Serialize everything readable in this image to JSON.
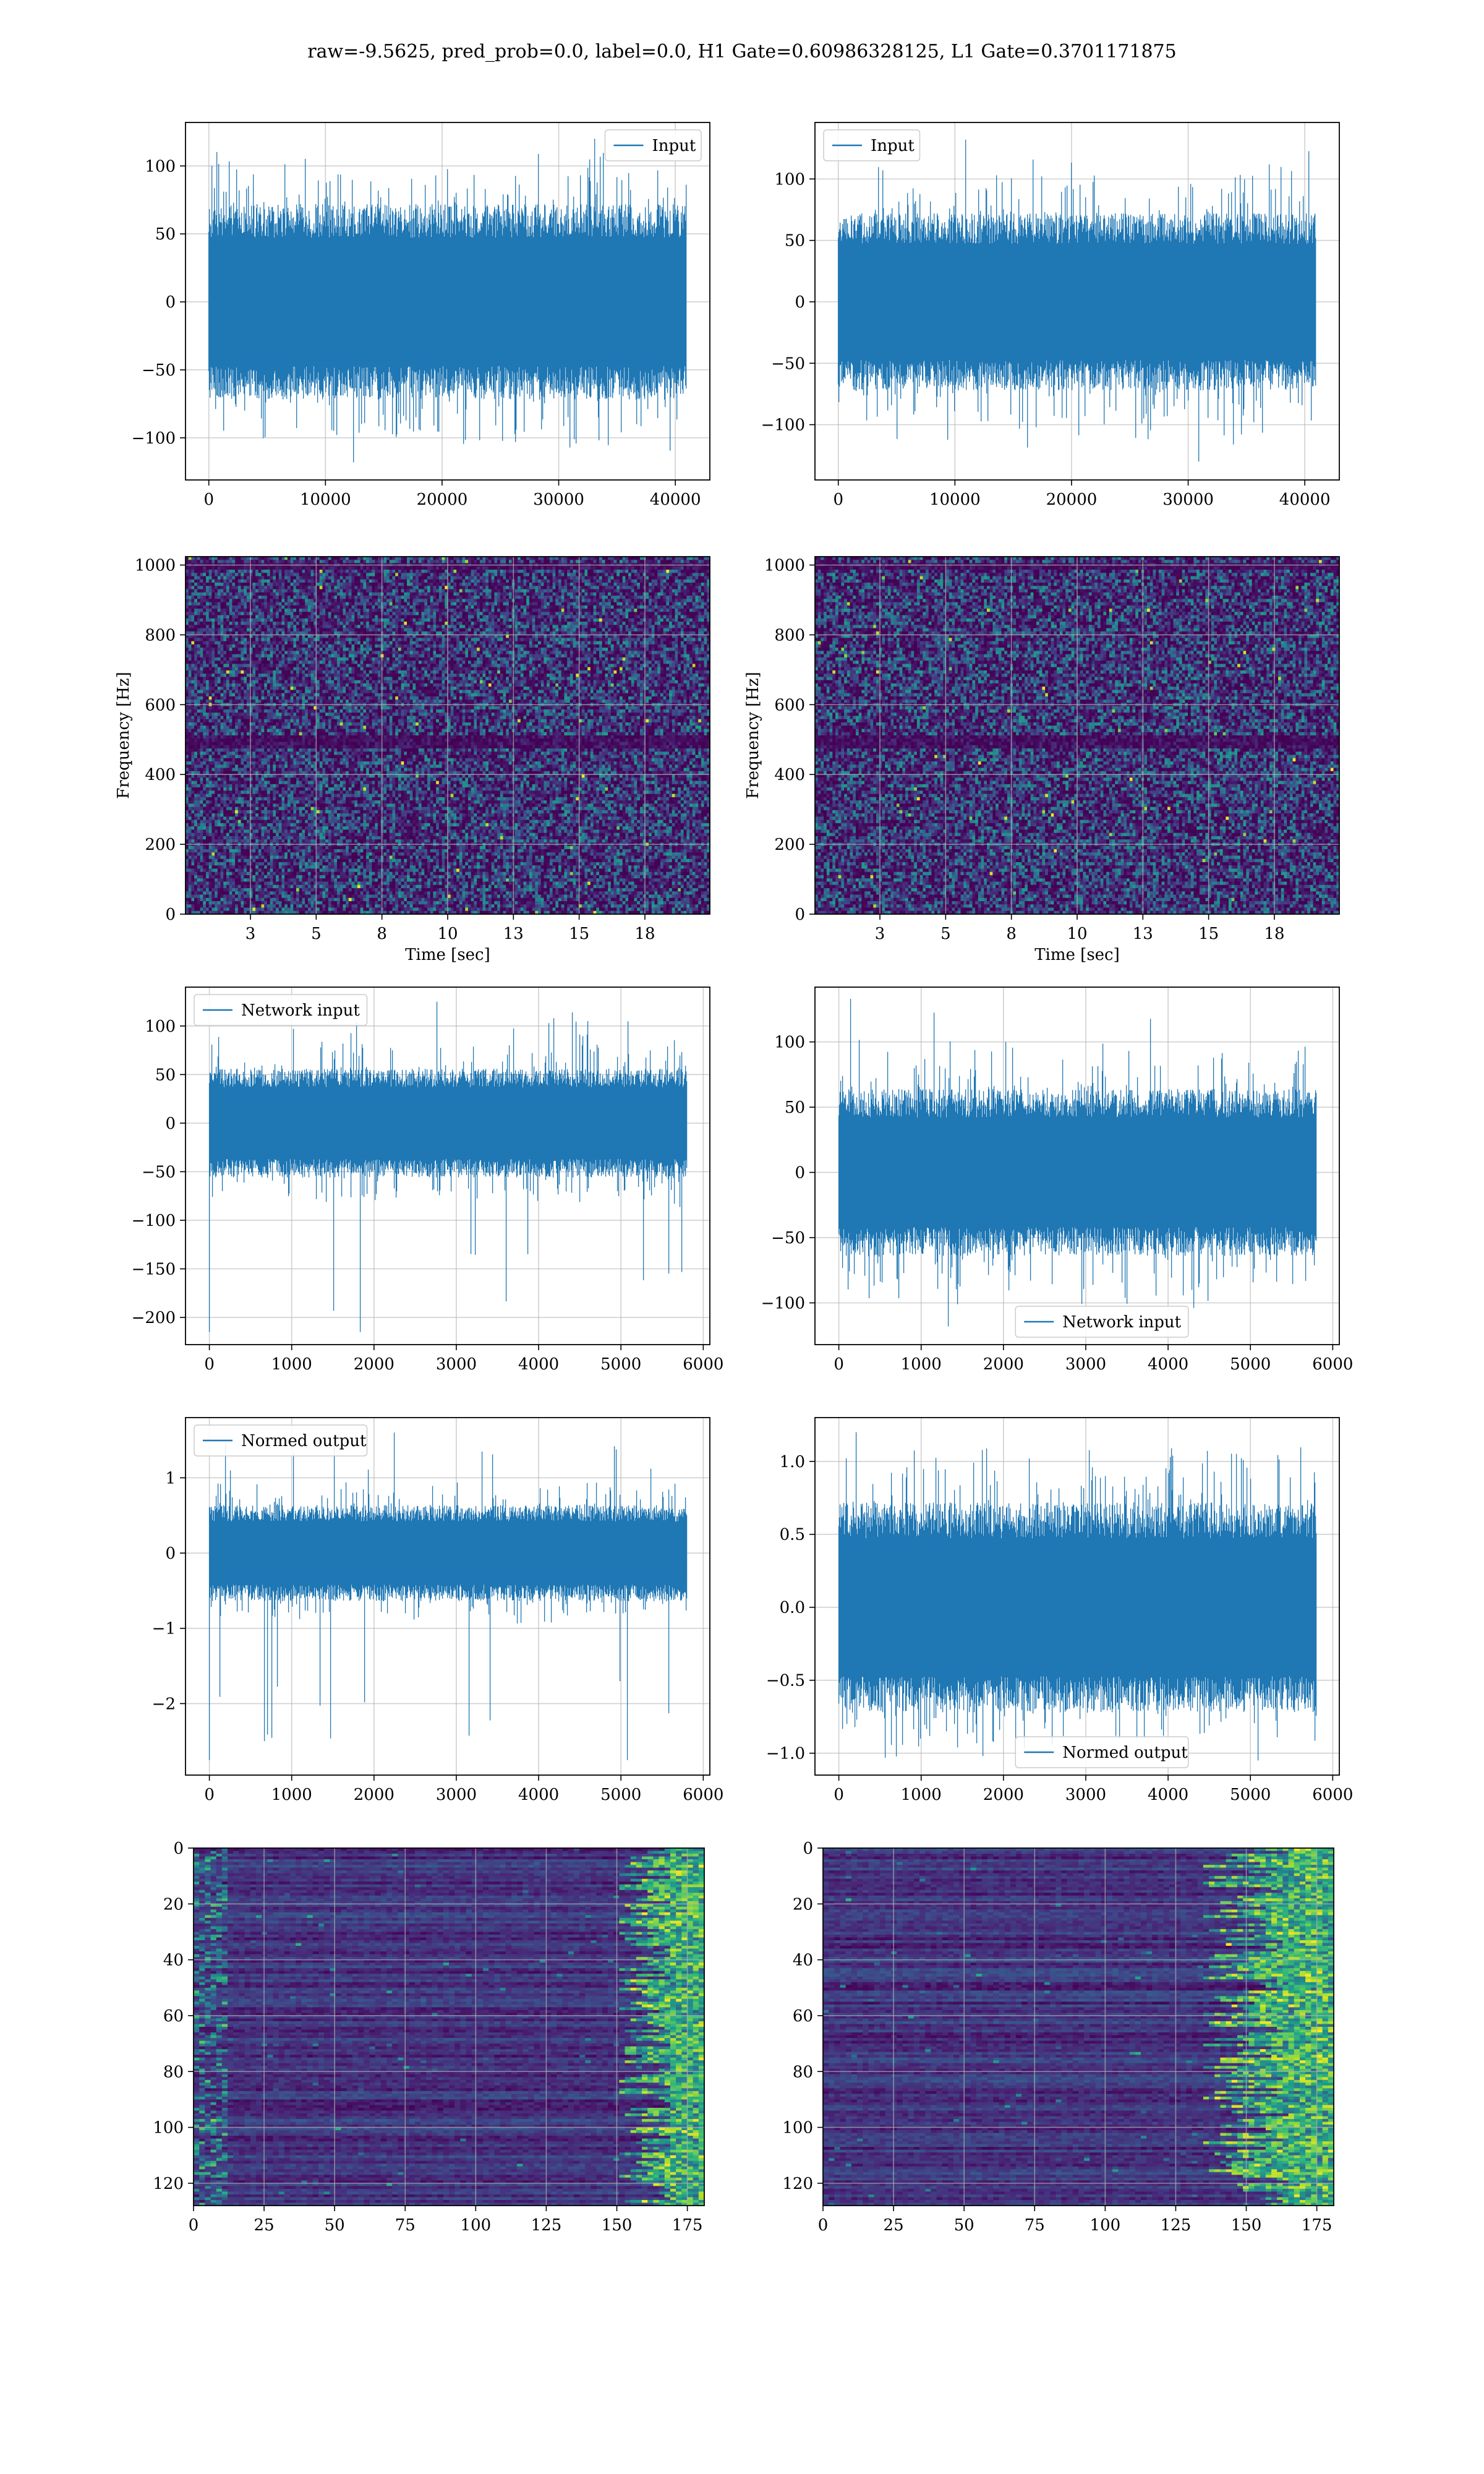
{
  "figure": {
    "title": "raw=-9.5625, pred_prob=0.0, label=0.0, H1 Gate=0.60986328125, L1 Gate=0.3701171875"
  },
  "colors": {
    "series": "#1f77b4",
    "grid": "#b0b0b0",
    "viridis_low": "#440154",
    "viridis_high": "#fde725"
  },
  "chart_data": [
    {
      "id": "input-h1",
      "type": "line",
      "title": "",
      "xlabel": "",
      "ylabel": "",
      "xlim": [
        -2000,
        42960
      ],
      "ylim": [
        -131,
        132
      ],
      "xticks": [
        0,
        10000,
        20000,
        30000,
        40000
      ],
      "yticks": [
        -100,
        -50,
        0,
        50,
        100
      ],
      "legend": {
        "label": "Input",
        "loc": "upper right"
      },
      "series": [
        {
          "name": "Input",
          "n_points": 40960,
          "x_range": [
            0,
            40960
          ],
          "typical_amplitude": 45,
          "peak_max": 120,
          "peak_min": -118
        }
      ]
    },
    {
      "id": "input-l1",
      "type": "line",
      "title": "",
      "xlabel": "",
      "ylabel": "",
      "xlim": [
        -2000,
        42960
      ],
      "ylim": [
        -145,
        146
      ],
      "xticks": [
        0,
        10000,
        20000,
        30000,
        40000
      ],
      "yticks": [
        -100,
        -50,
        0,
        50,
        100
      ],
      "legend": {
        "label": "Input",
        "loc": "upper left"
      },
      "series": [
        {
          "name": "Input",
          "n_points": 40960,
          "x_range": [
            0,
            40960
          ],
          "typical_amplitude": 45,
          "peak_max": 132,
          "peak_min": -130
        }
      ]
    },
    {
      "id": "spectrogram-h1",
      "type": "heatmap",
      "title": "",
      "xlabel": "Time [sec]",
      "ylabel": "Frequency [Hz]",
      "xlim": [
        0.03,
        19.97
      ],
      "ylim": [
        0,
        1024
      ],
      "xticks": [
        2.5,
        5.0,
        7.5,
        10.0,
        12.5,
        15.0,
        17.5
      ],
      "yticks": [
        0,
        200,
        400,
        600,
        800,
        1000
      ],
      "colormap": "viridis",
      "dark_bands_hz": [
        500,
        1000
      ]
    },
    {
      "id": "spectrogram-l1",
      "type": "heatmap",
      "title": "",
      "xlabel": "Time [sec]",
      "ylabel": "Frequency [Hz]",
      "xlim": [
        0.03,
        19.97
      ],
      "ylim": [
        0,
        1024
      ],
      "xticks": [
        2.5,
        5.0,
        7.5,
        10.0,
        12.5,
        15.0,
        17.5
      ],
      "yticks": [
        0,
        200,
        400,
        600,
        800,
        1000
      ],
      "colormap": "viridis",
      "dark_bands_hz": [
        500,
        1000
      ]
    },
    {
      "id": "network-input-h1",
      "type": "line",
      "title": "",
      "xlabel": "",
      "ylabel": "",
      "xlim": [
        -290,
        6080
      ],
      "ylim": [
        -228,
        140
      ],
      "xticks": [
        0,
        1000,
        2000,
        3000,
        4000,
        5000,
        6000
      ],
      "yticks": [
        -200,
        -150,
        -100,
        -50,
        0,
        50,
        100
      ],
      "legend": {
        "label": "Network input",
        "loc": "upper left"
      },
      "series": [
        {
          "name": "Network input",
          "n_points": 5800,
          "x_range": [
            0,
            5800
          ],
          "typical_amplitude": 35,
          "peak_max": 125,
          "peak_min": -215,
          "spike_at_x": 0
        }
      ]
    },
    {
      "id": "network-input-l1",
      "type": "line",
      "title": "",
      "xlabel": "",
      "ylabel": "",
      "xlim": [
        -290,
        6080
      ],
      "ylim": [
        -132,
        142
      ],
      "xticks": [
        0,
        1000,
        2000,
        3000,
        4000,
        5000,
        6000
      ],
      "yticks": [
        -100,
        -50,
        0,
        50,
        100
      ],
      "legend": {
        "label": "Network input",
        "loc": "lower center"
      },
      "series": [
        {
          "name": "Network input",
          "n_points": 5800,
          "x_range": [
            0,
            5800
          ],
          "typical_amplitude": 40,
          "peak_max": 133,
          "peak_min": -118
        }
      ]
    },
    {
      "id": "normed-output-h1",
      "type": "line",
      "title": "",
      "xlabel": "",
      "ylabel": "",
      "xlim": [
        -290,
        6080
      ],
      "ylim": [
        -2.95,
        1.8
      ],
      "xticks": [
        0,
        1000,
        2000,
        3000,
        4000,
        5000,
        6000
      ],
      "yticks": [
        -2,
        -1,
        0,
        1
      ],
      "legend": {
        "label": "Normed output",
        "loc": "upper left"
      },
      "series": [
        {
          "name": "Normed output",
          "n_points": 5800,
          "x_range": [
            0,
            5800
          ],
          "typical_amplitude": 0.4,
          "peak_max": 1.6,
          "peak_min": -2.75,
          "spike_at_x": 0
        }
      ]
    },
    {
      "id": "normed-output-l1",
      "type": "line",
      "title": "",
      "xlabel": "",
      "ylabel": "",
      "xlim": [
        -290,
        6080
      ],
      "ylim": [
        -1.15,
        1.3
      ],
      "xticks": [
        0,
        1000,
        2000,
        3000,
        4000,
        5000,
        6000
      ],
      "yticks": [
        -1.0,
        -0.5,
        0.0,
        0.5,
        1.0
      ],
      "legend": {
        "label": "Normed output",
        "loc": "lower center"
      },
      "series": [
        {
          "name": "Normed output",
          "n_points": 5800,
          "x_range": [
            0,
            5800
          ],
          "typical_amplitude": 0.45,
          "peak_max": 1.2,
          "peak_min": -1.05
        }
      ]
    },
    {
      "id": "feature-map-h1",
      "type": "heatmap",
      "title": "",
      "xlabel": "",
      "ylabel": "",
      "xlim": [
        0,
        181
      ],
      "ylim": [
        128,
        0
      ],
      "xticks": [
        0,
        25,
        50,
        75,
        100,
        125,
        150,
        175
      ],
      "yticks": [
        0,
        20,
        40,
        60,
        80,
        100,
        120
      ],
      "colormap": "viridis",
      "rows": 128,
      "cols": 181
    },
    {
      "id": "feature-map-l1",
      "type": "heatmap",
      "title": "",
      "xlabel": "",
      "ylabel": "",
      "xlim": [
        0,
        181
      ],
      "ylim": [
        128,
        0
      ],
      "xticks": [
        0,
        25,
        50,
        75,
        100,
        125,
        150,
        175
      ],
      "yticks": [
        0,
        20,
        40,
        60,
        80,
        100,
        120
      ],
      "colormap": "viridis",
      "rows": 128,
      "cols": 181
    }
  ]
}
